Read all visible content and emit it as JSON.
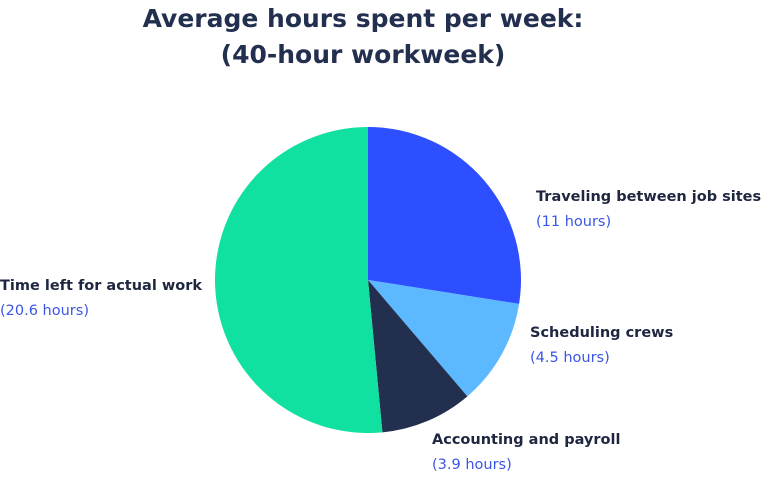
{
  "chart_data": {
    "type": "pie",
    "title": "Average hours spent per week:",
    "subtitle": "(40-hour workweek)",
    "categories": [
      "Traveling between job sites",
      "Scheduling crews",
      "Accounting and payroll",
      "Time left for actual work"
    ],
    "values": [
      11,
      4.5,
      3.9,
      20.6
    ],
    "value_labels": [
      "(11 hours)",
      "(4.5 hours)",
      "(3.9 hours)",
      "(20.6 hours)"
    ],
    "colors": [
      "#2e4fff",
      "#5cb8ff",
      "#232f4f",
      "#10e0a0"
    ],
    "start_angle": 0,
    "direction": "clockwise"
  }
}
